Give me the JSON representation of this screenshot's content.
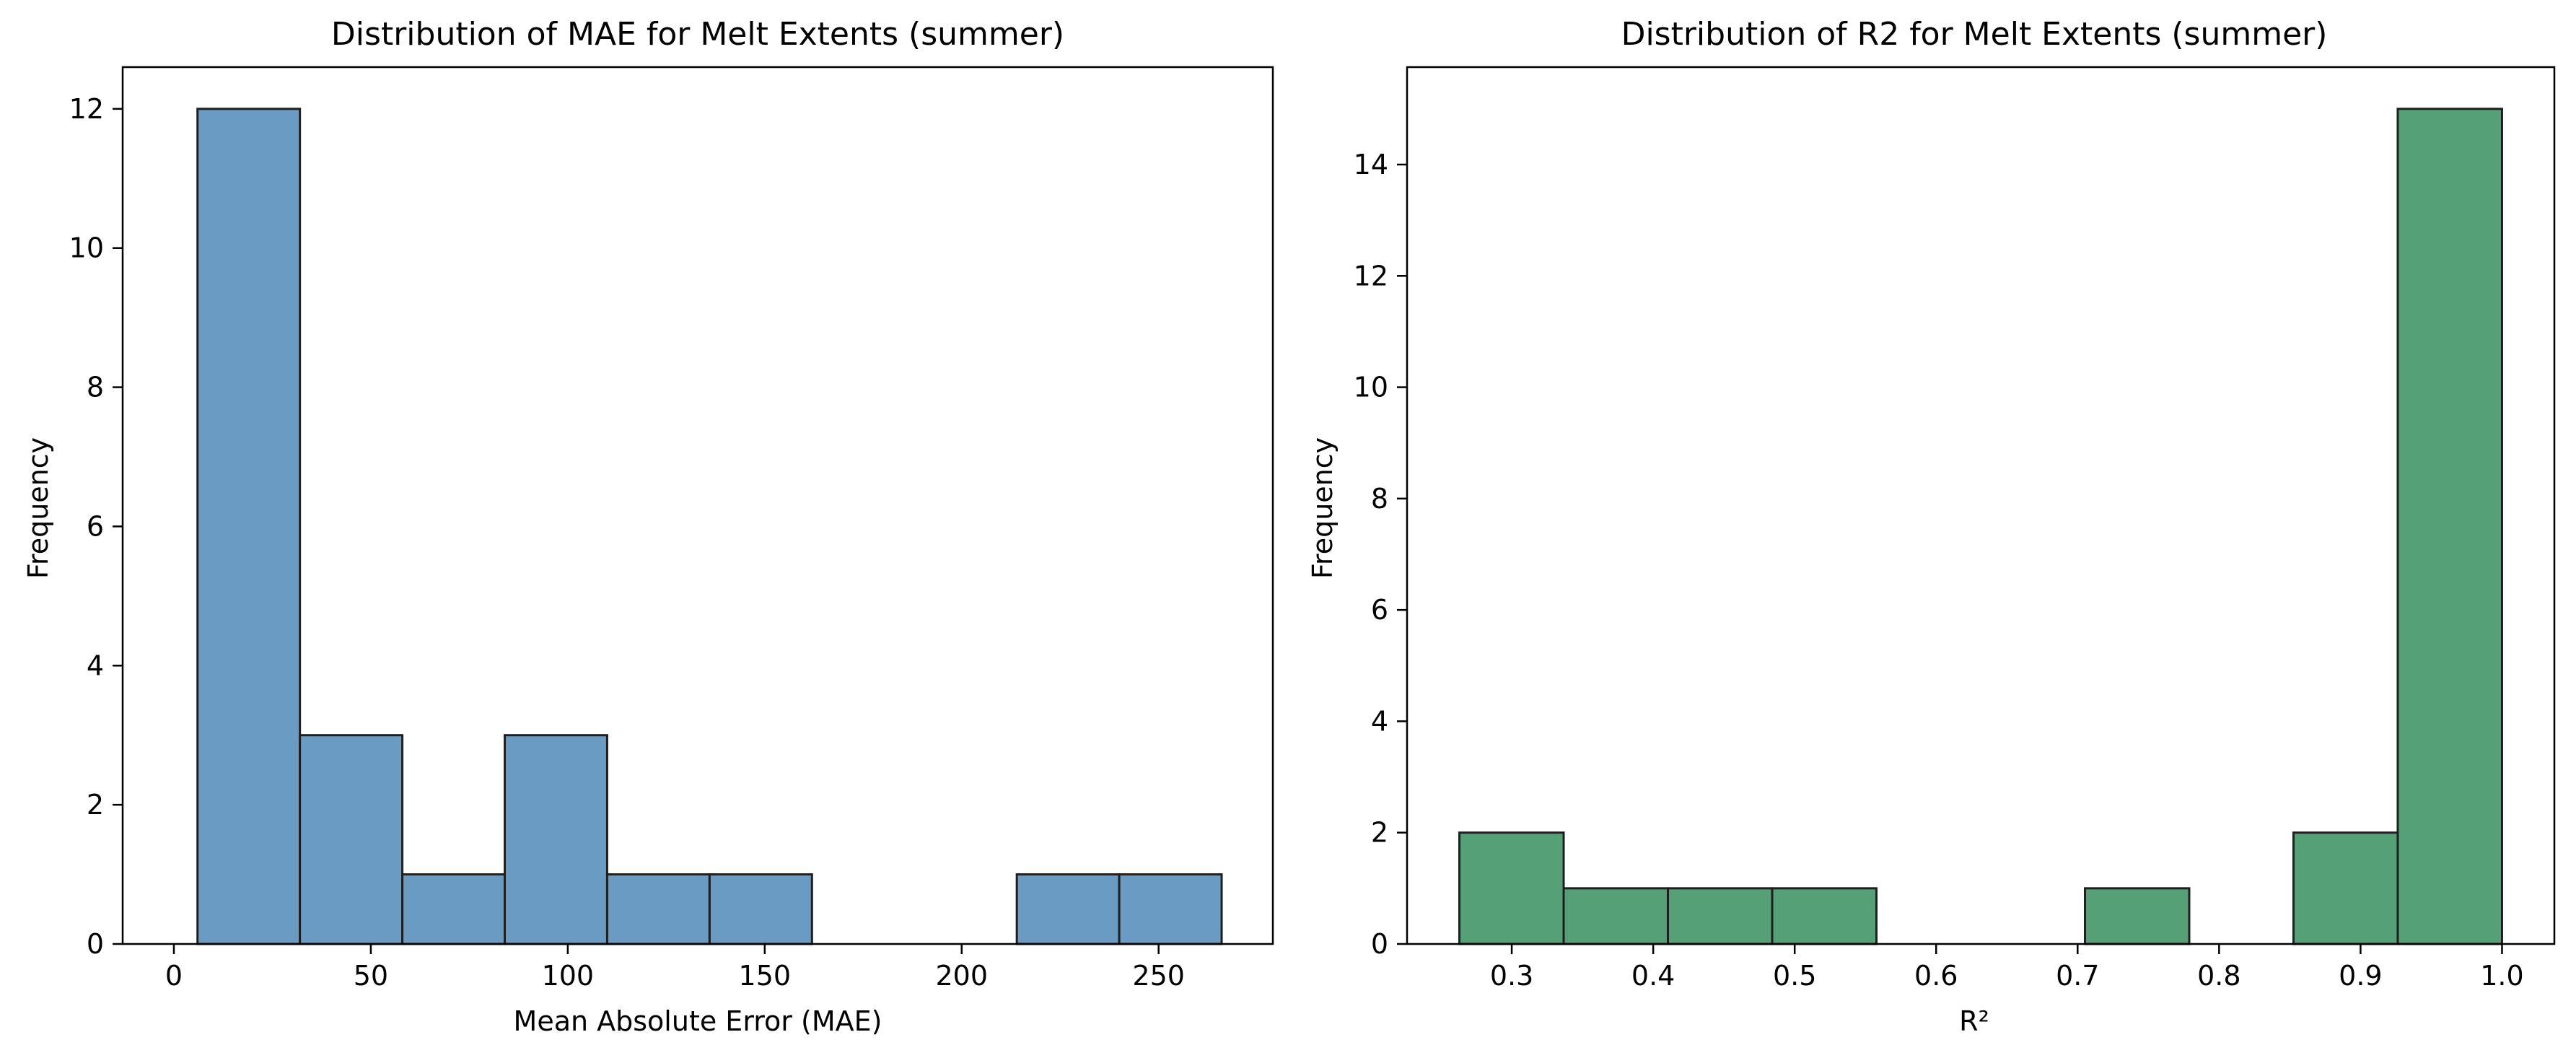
{
  "chart_data": [
    {
      "type": "bar",
      "title": "Distribution of MAE for Melt Extents (summer)",
      "xlabel": "Mean Absolute Error (MAE)",
      "ylabel": "Frequency",
      "bin_edges": [
        6.0,
        32.0,
        58.0,
        84.0,
        110.0,
        136.0,
        162.0,
        188.0,
        214.0,
        240.0,
        266.0
      ],
      "values": [
        12,
        3,
        1,
        3,
        1,
        1,
        0,
        0,
        1,
        1
      ],
      "xlim": [
        -13,
        279
      ],
      "ylim": [
        0,
        12.6
      ],
      "xticks": [
        0,
        50,
        100,
        150,
        200,
        250
      ],
      "yticks": [
        0,
        2,
        4,
        6,
        8,
        10,
        12
      ],
      "color": "#6a9bc3",
      "edgecolor": "#1f1f1f",
      "grid": false
    },
    {
      "type": "bar",
      "title": "Distribution of R2 for Melt Extents (summer)",
      "xlabel": "R²",
      "ylabel": "Frequency",
      "bin_edges": [
        0.263,
        0.3367,
        0.4104,
        0.4841,
        0.5578,
        0.6315,
        0.7052,
        0.7789,
        0.8526,
        0.9263,
        1.0
      ],
      "values": [
        2,
        1,
        1,
        1,
        0,
        0,
        1,
        0,
        2,
        15
      ],
      "xlim": [
        0.226,
        1.037
      ],
      "ylim": [
        0,
        15.75
      ],
      "xticks": [
        0.3,
        0.4,
        0.5,
        0.6,
        0.7,
        0.8,
        0.9,
        1.0
      ],
      "yticks": [
        0,
        2,
        4,
        6,
        8,
        10,
        12,
        14
      ],
      "color": "#55a077",
      "edgecolor": "#1f1f1f",
      "grid": false
    }
  ]
}
